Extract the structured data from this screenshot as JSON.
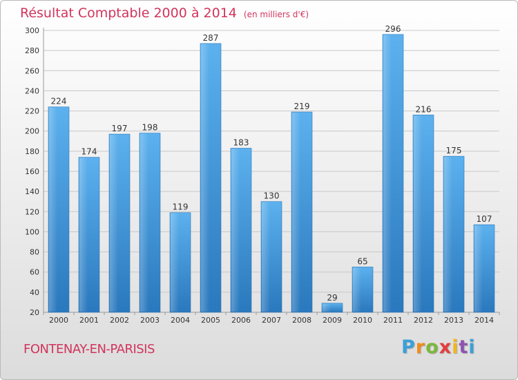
{
  "header": {
    "title": "Résultat Comptable 2000 à 2014",
    "unit": "(en milliers d'€)"
  },
  "footer": {
    "commune": "FONTENAY-EN-PARISIS",
    "logo_text": "Proxiti"
  },
  "colors": {
    "title": "#d1345b",
    "bar": "#4a9fe0",
    "bar_dark": "#2c7cc0"
  },
  "chart_data": {
    "type": "bar",
    "categories": [
      "2000",
      "2001",
      "2002",
      "2003",
      "2004",
      "2005",
      "2006",
      "2007",
      "2008",
      "2009",
      "2010",
      "2011",
      "2012",
      "2013",
      "2014"
    ],
    "values": [
      224,
      174,
      197,
      198,
      119,
      287,
      183,
      130,
      219,
      29,
      65,
      296,
      216,
      175,
      107
    ],
    "ylim": [
      20,
      300
    ],
    "yticks": [
      20,
      40,
      60,
      80,
      100,
      120,
      140,
      160,
      180,
      200,
      220,
      240,
      260,
      280,
      300
    ],
    "grid": true,
    "xlabel": "",
    "ylabel": ""
  }
}
